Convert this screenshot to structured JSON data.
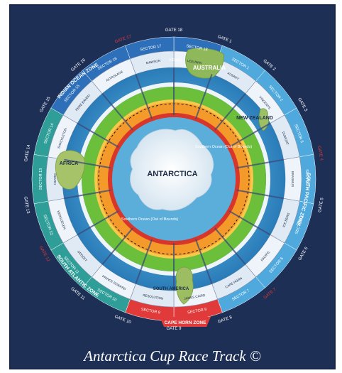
{
  "caption": "Antarctica Cup Race Track ©",
  "continents": {
    "antarctica": "ANTARCTICA",
    "australia": "AUSTRALIA",
    "new_zealand": "NEW ZEALAND",
    "africa": "AFRICA",
    "south_america": "SOUTH AMERICA"
  },
  "places": {
    "albany": "Albany",
    "southern_ocean_top": "Southern Ocean (Out of Bounds)",
    "southern_ocean_bottom": "Southern Ocean (Out of Bounds)"
  },
  "zones": {
    "indian_ocean": "INDIAN OCEAN ZONE",
    "south_pacific": "SOUTH PACIFIC ZONE",
    "south_atlantic": "SOUTH ATLANTIC ZONE",
    "cape_horn": "CAPE HORN ZONE"
  },
  "gates": [
    "GATE 1",
    "GATE 2",
    "GATE 3",
    "GATE 4",
    "GATE 5",
    "GATE 6",
    "GATE 7",
    "GATE 8",
    "GATE 9",
    "GATE 10",
    "GATE 11",
    "GATE 12",
    "GATE 13",
    "GATE 14",
    "GATE 15",
    "GATE 16",
    "GATE 17",
    "GATE 18"
  ],
  "sectors": [
    "SECTOR 18",
    "SECTOR 1",
    "SECTOR 2",
    "SECTOR 3",
    "SECTOR 4",
    "SECTOR 5",
    "SECTOR 6",
    "SECTOR 7",
    "SECTOR 8",
    "SECTOR 9",
    "SECTOR 10",
    "SECTOR 11",
    "SECTOR 12",
    "SECTOR 13",
    "SECTOR 14",
    "SECTOR 15",
    "SECTOR 16",
    "SECTOR 17"
  ],
  "sector_names": [
    "LEEUWIN",
    "ALBANY",
    "VINCENTS",
    "DUMONT",
    "ERASMUS",
    "ICE BERG",
    "PACIFIC",
    "CAPE HORN",
    "JAMES CAIRD",
    "RESOLUTION",
    "PRINCE EDWARD",
    "CROZET",
    "KERGUELEN",
    "HEARD",
    "SHACKLETON",
    "PERE BANDU",
    "ALTROLAGE",
    "MAWSON"
  ],
  "colors": {
    "frame": "#1e2f56",
    "outer_blue": "#2d6fb8",
    "pacific_blue": "#4fa9dc",
    "atlantic_teal": "#2f9e98",
    "cape_horn_red": "#e03a3a",
    "ocean": "#3a8fc8",
    "orange_band": "#f39a2a",
    "green_band": "#6cbf3a",
    "ice": "#f2f6fa"
  }
}
